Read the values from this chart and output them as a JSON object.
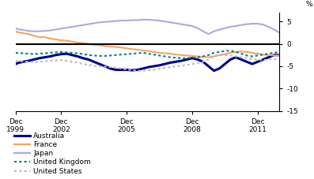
{
  "title": "",
  "ylabel": "%",
  "ylim": [
    -15,
    7
  ],
  "yticks": [
    -15,
    -10,
    -5,
    0,
    5
  ],
  "xlim": [
    1999.917,
    2012.0
  ],
  "xtick_positions": [
    1999.917,
    2002.0,
    2005.0,
    2008.0,
    2011.0
  ],
  "xtick_labels": [
    "Dec\n1999",
    "Dec\n2002",
    "Dec\n2005",
    "Dec\n2008",
    "Dec\n2011"
  ],
  "background_color": "#ffffff",
  "zero_line_color": "#000000",
  "legend_entries": [
    "Australia",
    "France",
    "Japan",
    "United Kingdom",
    "United States"
  ],
  "series": {
    "Australia": {
      "color": "#00008B",
      "linewidth": 2.2,
      "linestyle": "solid",
      "data_x": [
        1999.917,
        2000.0,
        2000.25,
        2000.5,
        2000.75,
        2001.0,
        2001.25,
        2001.5,
        2001.75,
        2002.0,
        2002.25,
        2002.5,
        2002.75,
        2003.0,
        2003.25,
        2003.5,
        2003.75,
        2004.0,
        2004.25,
        2004.5,
        2004.75,
        2005.0,
        2005.25,
        2005.5,
        2005.75,
        2006.0,
        2006.25,
        2006.5,
        2006.75,
        2007.0,
        2007.25,
        2007.5,
        2007.75,
        2008.0,
        2008.25,
        2008.5,
        2008.75,
        2009.0,
        2009.25,
        2009.5,
        2009.75,
        2010.0,
        2010.25,
        2010.5,
        2010.75,
        2011.0,
        2011.25,
        2011.5,
        2011.75,
        2012.0
      ],
      "data_y": [
        -4.5,
        -4.3,
        -4.0,
        -3.8,
        -3.5,
        -3.2,
        -3.0,
        -2.8,
        -2.5,
        -2.3,
        -2.2,
        -2.5,
        -2.8,
        -3.2,
        -3.5,
        -4.0,
        -4.5,
        -5.0,
        -5.5,
        -5.8,
        -5.8,
        -5.8,
        -5.9,
        -5.8,
        -5.5,
        -5.2,
        -5.0,
        -4.8,
        -4.5,
        -4.2,
        -4.0,
        -3.8,
        -3.5,
        -3.2,
        -3.5,
        -4.0,
        -5.0,
        -6.0,
        -5.5,
        -4.5,
        -3.5,
        -3.0,
        -3.5,
        -4.0,
        -4.5,
        -4.0,
        -3.5,
        -3.0,
        -2.5,
        -2.5
      ]
    },
    "France": {
      "color": "#F4A460",
      "linewidth": 1.5,
      "linestyle": "solid",
      "data_x": [
        1999.917,
        2000.0,
        2000.25,
        2000.5,
        2000.75,
        2001.0,
        2001.25,
        2001.5,
        2001.75,
        2002.0,
        2002.25,
        2002.5,
        2002.75,
        2003.0,
        2003.25,
        2003.5,
        2003.75,
        2004.0,
        2004.25,
        2004.5,
        2004.75,
        2005.0,
        2005.25,
        2005.5,
        2005.75,
        2006.0,
        2006.25,
        2006.5,
        2006.75,
        2007.0,
        2007.25,
        2007.5,
        2007.75,
        2008.0,
        2008.25,
        2008.5,
        2008.75,
        2009.0,
        2009.25,
        2009.5,
        2009.75,
        2010.0,
        2010.25,
        2010.5,
        2010.75,
        2011.0,
        2011.25,
        2011.5,
        2011.75,
        2012.0
      ],
      "data_y": [
        2.8,
        2.6,
        2.4,
        2.2,
        1.8,
        1.5,
        1.5,
        1.2,
        1.0,
        0.8,
        0.7,
        0.5,
        0.3,
        0.2,
        0.0,
        -0.2,
        -0.3,
        -0.5,
        -0.6,
        -0.7,
        -0.8,
        -1.0,
        -1.2,
        -1.3,
        -1.5,
        -1.6,
        -1.8,
        -2.0,
        -2.1,
        -2.2,
        -2.4,
        -2.5,
        -2.6,
        -2.7,
        -2.8,
        -2.9,
        -3.0,
        -2.8,
        -2.5,
        -2.3,
        -2.0,
        -1.8,
        -1.7,
        -1.8,
        -2.0,
        -2.2,
        -2.4,
        -2.5,
        -2.6,
        -2.6
      ]
    },
    "Japan": {
      "color": "#AAAADD",
      "linewidth": 1.5,
      "linestyle": "solid",
      "data_x": [
        1999.917,
        2000.0,
        2000.25,
        2000.5,
        2000.75,
        2001.0,
        2001.25,
        2001.5,
        2001.75,
        2002.0,
        2002.25,
        2002.5,
        2002.75,
        2003.0,
        2003.25,
        2003.5,
        2003.75,
        2004.0,
        2004.25,
        2004.5,
        2004.75,
        2005.0,
        2005.25,
        2005.5,
        2005.75,
        2006.0,
        2006.25,
        2006.5,
        2006.75,
        2007.0,
        2007.25,
        2007.5,
        2007.75,
        2008.0,
        2008.25,
        2008.5,
        2008.75,
        2009.0,
        2009.25,
        2009.5,
        2009.75,
        2010.0,
        2010.25,
        2010.5,
        2010.75,
        2011.0,
        2011.25,
        2011.5,
        2011.75,
        2012.0
      ],
      "data_y": [
        3.5,
        3.3,
        3.1,
        2.9,
        2.8,
        2.8,
        2.9,
        3.0,
        3.2,
        3.4,
        3.6,
        3.8,
        4.0,
        4.2,
        4.4,
        4.6,
        4.8,
        4.9,
        5.0,
        5.1,
        5.2,
        5.2,
        5.3,
        5.3,
        5.4,
        5.4,
        5.3,
        5.2,
        5.0,
        4.8,
        4.6,
        4.4,
        4.2,
        4.0,
        3.5,
        2.8,
        2.2,
        2.8,
        3.2,
        3.5,
        3.8,
        4.0,
        4.2,
        4.4,
        4.5,
        4.5,
        4.3,
        3.8,
        3.2,
        2.5
      ]
    },
    "United Kingdom": {
      "color": "#008080",
      "linewidth": 1.5,
      "linestyle": "dotted",
      "data_x": [
        1999.917,
        2000.0,
        2000.25,
        2000.5,
        2000.75,
        2001.0,
        2001.25,
        2001.5,
        2001.75,
        2002.0,
        2002.25,
        2002.5,
        2002.75,
        2003.0,
        2003.25,
        2003.5,
        2003.75,
        2004.0,
        2004.25,
        2004.5,
        2004.75,
        2005.0,
        2005.25,
        2005.5,
        2005.75,
        2006.0,
        2006.25,
        2006.5,
        2006.75,
        2007.0,
        2007.25,
        2007.5,
        2007.75,
        2008.0,
        2008.25,
        2008.5,
        2008.75,
        2009.0,
        2009.25,
        2009.5,
        2009.75,
        2010.0,
        2010.25,
        2010.5,
        2010.75,
        2011.0,
        2011.25,
        2011.5,
        2011.75,
        2012.0
      ],
      "data_y": [
        -2.0,
        -2.05,
        -2.1,
        -2.2,
        -2.3,
        -2.2,
        -2.1,
        -2.0,
        -1.9,
        -1.8,
        -1.9,
        -2.0,
        -2.1,
        -2.3,
        -2.5,
        -2.6,
        -2.7,
        -2.7,
        -2.6,
        -2.5,
        -2.4,
        -2.3,
        -2.2,
        -2.1,
        -2.0,
        -2.2,
        -2.4,
        -2.6,
        -2.8,
        -3.0,
        -3.1,
        -3.2,
        -3.2,
        -3.1,
        -3.0,
        -2.8,
        -2.5,
        -2.0,
        -1.8,
        -1.6,
        -1.5,
        -1.8,
        -2.2,
        -2.6,
        -2.8,
        -2.6,
        -2.4,
        -2.2,
        -2.0,
        -1.8
      ]
    },
    "United States": {
      "color": "#BBBBBB",
      "linewidth": 1.5,
      "linestyle": "dotted",
      "data_x": [
        1999.917,
        2000.0,
        2000.25,
        2000.5,
        2000.75,
        2001.0,
        2001.25,
        2001.5,
        2001.75,
        2002.0,
        2002.25,
        2002.5,
        2002.75,
        2003.0,
        2003.25,
        2003.5,
        2003.75,
        2004.0,
        2004.25,
        2004.5,
        2004.75,
        2005.0,
        2005.25,
        2005.5,
        2005.75,
        2006.0,
        2006.25,
        2006.5,
        2006.75,
        2007.0,
        2007.25,
        2007.5,
        2007.75,
        2008.0,
        2008.25,
        2008.5,
        2008.75,
        2009.0,
        2009.25,
        2009.5,
        2009.75,
        2010.0,
        2010.25,
        2010.5,
        2010.75,
        2011.0,
        2011.25,
        2011.5,
        2011.75,
        2012.0
      ],
      "data_y": [
        -3.8,
        -3.85,
        -3.9,
        -4.0,
        -4.1,
        -4.0,
        -3.9,
        -3.8,
        -3.7,
        -3.6,
        -3.8,
        -4.0,
        -4.2,
        -4.5,
        -4.7,
        -4.9,
        -5.0,
        -5.1,
        -5.2,
        -5.3,
        -5.5,
        -5.7,
        -5.9,
        -6.0,
        -6.0,
        -5.9,
        -5.8,
        -5.6,
        -5.4,
        -5.2,
        -5.0,
        -4.9,
        -4.7,
        -4.5,
        -4.3,
        -4.0,
        -3.5,
        -2.7,
        -2.5,
        -2.5,
        -2.6,
        -2.8,
        -3.0,
        -3.2,
        -3.4,
        -3.5,
        -3.6,
        -3.5,
        -3.4,
        -3.3
      ]
    }
  }
}
